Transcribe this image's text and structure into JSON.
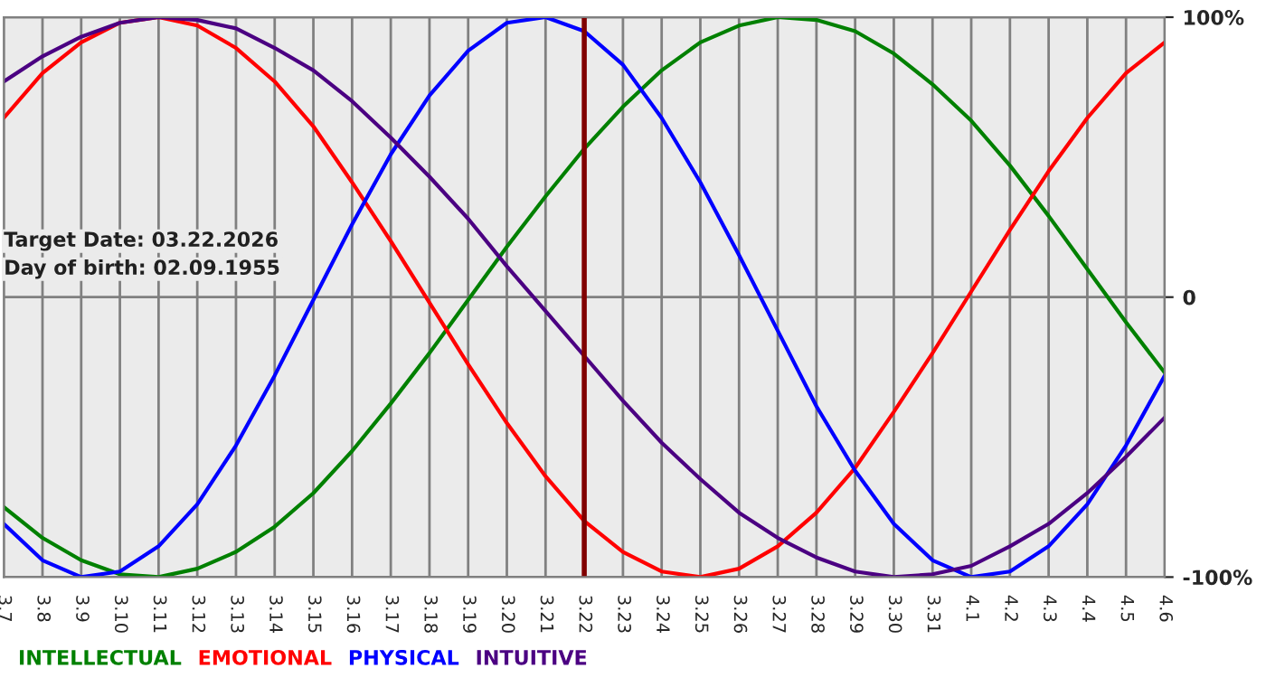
{
  "chart_data": {
    "type": "line",
    "categories": [
      "3.7",
      "3.8",
      "3.9",
      "3.10",
      "3.11",
      "3.12",
      "3.13",
      "3.14",
      "3.15",
      "3.16",
      "3.17",
      "3.18",
      "3.19",
      "3.20",
      "3.21",
      "3.22",
      "3.23",
      "3.24",
      "3.25",
      "3.26",
      "3.27",
      "3.28",
      "3.29",
      "3.30",
      "3.31",
      "4.1",
      "4.2",
      "4.3",
      "4.4",
      "4.5",
      "4.6"
    ],
    "series": [
      {
        "name": "INTELLECTUAL",
        "color": "#008000",
        "values": [
          -75,
          -86,
          -94,
          -99,
          -100,
          -97,
          -91,
          -82,
          -70,
          -55,
          -38,
          -20,
          -1,
          18,
          36,
          53,
          68,
          81,
          91,
          97,
          100,
          99,
          95,
          87,
          76,
          63,
          47,
          29,
          10,
          -9,
          -27
        ]
      },
      {
        "name": "EMOTIONAL",
        "color": "#ff0000",
        "values": [
          64,
          80,
          91,
          98,
          100,
          97,
          89,
          77,
          61,
          41,
          20,
          -2,
          -24,
          -45,
          -64,
          -80,
          -91,
          -98,
          -100,
          -97,
          -89,
          -77,
          -61,
          -41,
          -20,
          2,
          24,
          45,
          64,
          80,
          91
        ]
      },
      {
        "name": "PHYSICAL",
        "color": "#0000ff",
        "values": [
          -81,
          -94,
          -100,
          -98,
          -89,
          -74,
          -53,
          -28,
          -1,
          26,
          51,
          72,
          88,
          98,
          100,
          95,
          83,
          64,
          41,
          15,
          -12,
          -39,
          -62,
          -81,
          -94,
          -100,
          -98,
          -89,
          -74,
          -53,
          -28
        ]
      },
      {
        "name": "INTUITIVE",
        "color": "#4b0082",
        "values": [
          77,
          86,
          93,
          98,
          100,
          99,
          96,
          89,
          81,
          70,
          57,
          43,
          28,
          11,
          -5,
          -21,
          -37,
          -52,
          -65,
          -77,
          -86,
          -93,
          -98,
          -100,
          -99,
          -96,
          -89,
          -81,
          -70,
          -57,
          -43
        ]
      }
    ],
    "ylim": [
      -100,
      100
    ],
    "yticks": [
      {
        "value": -100,
        "label": "-100%"
      },
      0,
      {
        "value": 100,
        "label": "100%"
      }
    ],
    "grid": true,
    "legend": "bottom",
    "ref_lines": [
      {
        "axis": "x",
        "value": "3.22",
        "color": "#800000"
      }
    ],
    "annotations": [
      "Target Date: 03.22.2026",
      "Day of birth: 02.09.1955"
    ]
  }
}
